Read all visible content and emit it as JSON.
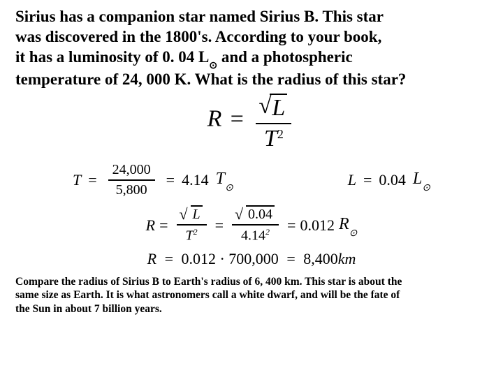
{
  "question": {
    "line1": "Sirius has a companion star named Sirius B.  This star",
    "line2": "was discovered in the 1800's.  According to your book,",
    "line3": " it has a luminosity of 0. 04 L",
    "line3b": " and a photospheric",
    "line4": "temperature of 24, 000 K.  What is the radius of this star?",
    "sun_symbol": "⊙"
  },
  "formula_main": {
    "lhs": "R",
    "num_var": "L",
    "den_var": "T",
    "den_exp": "2"
  },
  "temperature": {
    "lhs": "T",
    "num": "24,000",
    "den": "5,800",
    "result": "4.14",
    "unit": "T",
    "sun": "⊙"
  },
  "luminosity": {
    "lhs": "L",
    "value": "0.04",
    "unit": "L",
    "sun": "⊙"
  },
  "radius_calc": {
    "lhs": "R",
    "num_var": "L",
    "den_var": "T",
    "den_exp": "2",
    "num_val": "0.04",
    "den_val": "4.14",
    "den_val_exp": "2",
    "result": "0.012",
    "unit": "R",
    "sun": "⊙"
  },
  "final": {
    "expr_lhs": "R",
    "expr": "0.012 · 700,000",
    "result": "8,400",
    "unit": "km"
  },
  "footer": {
    "line1": "Compare the radius of Sirius B to Earth's radius of 6, 400 km.  This star is about the",
    "line2": "same size as Earth.  It is what astronomers call a white dwarf, and will be the fate of",
    "line3": "the Sun in about 7 billion years."
  },
  "colors": {
    "text": "#000000",
    "background": "#ffffff"
  }
}
